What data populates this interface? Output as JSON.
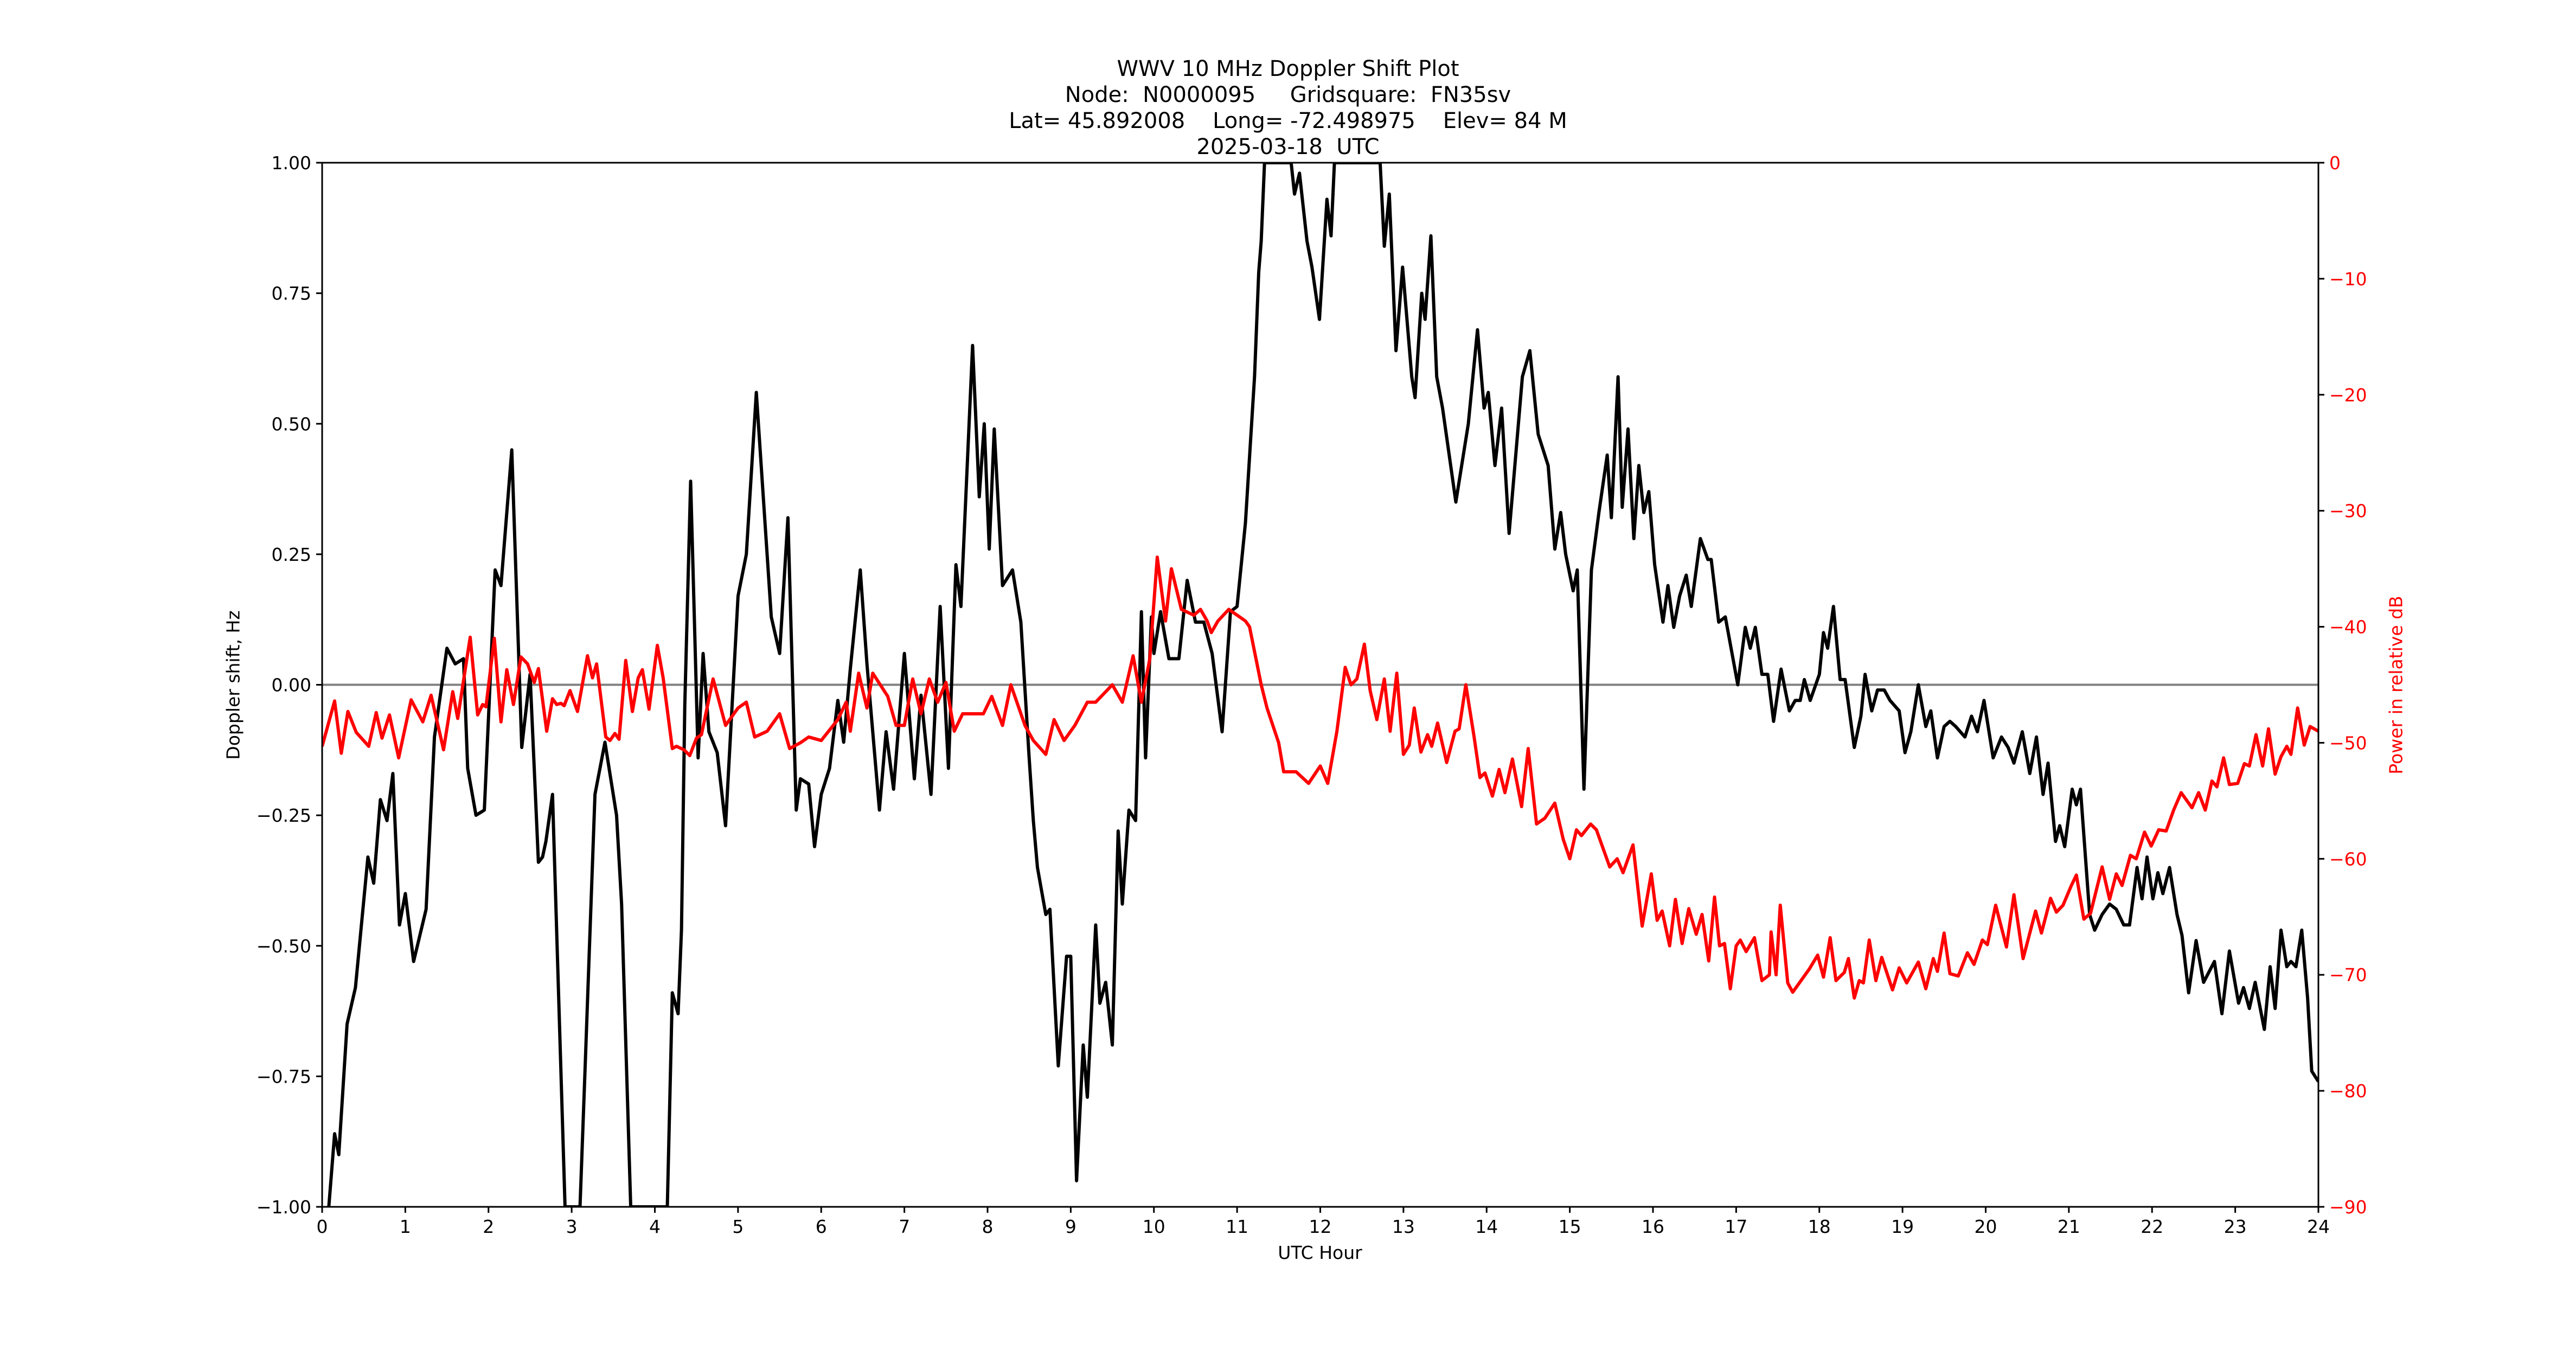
{
  "figure": {
    "title_lines": [
      "WWV 10 MHz Doppler Shift Plot",
      "Node:  N0000095     Gridsquare:  FN35sv",
      "Lat= 45.892008    Long= -72.498975    Elev= 84 M",
      "2025-03-18  UTC"
    ],
    "xlabel": "UTC Hour",
    "ylabel": "Doppler shift, Hz",
    "y2label": "Power in relative dB",
    "colors": {
      "doppler": "#000000",
      "power": "#ff0000",
      "zero_line": "#808080",
      "right_axis_text": "#ff0000"
    }
  },
  "chart_data": {
    "type": "line",
    "title": "WWV 10 MHz Doppler Shift Plot — Node: N0000095, Gridsquare: FN35sv, Lat= 45.892008, Long= -72.498975, Elev= 84 M, 2025-03-18 UTC",
    "xlabel": "UTC Hour",
    "ylabel": "Doppler shift, Hz",
    "y2label": "Power in relative dB",
    "xlim": [
      0,
      24
    ],
    "ylim": [
      -1.0,
      1.0
    ],
    "y2lim": [
      -90,
      0
    ],
    "xticks": [
      "0",
      "1",
      "2",
      "3",
      "4",
      "5",
      "6",
      "7",
      "8",
      "9",
      "10",
      "11",
      "12",
      "13",
      "14",
      "15",
      "16",
      "17",
      "18",
      "19",
      "20",
      "21",
      "22",
      "23",
      "24"
    ],
    "yticks": [
      "−1.00",
      "−0.75",
      "−0.50",
      "−0.25",
      "0.00",
      "0.25",
      "0.50",
      "0.75",
      "1.00"
    ],
    "y2ticks": [
      "−90",
      "−80",
      "−70",
      "−60",
      "−50",
      "−40",
      "−30",
      "−20",
      "−10",
      "0"
    ],
    "grid": false,
    "legend": null,
    "annotations": [
      "horizontal reference line at 0.00 Hz (gray)"
    ],
    "series": [
      {
        "name": "Doppler shift (Hz)",
        "axis": "left",
        "color": "#000000",
        "x": [
          0.08,
          0.15,
          0.2,
          0.3,
          0.4,
          0.55,
          0.62,
          0.7,
          0.78,
          0.85,
          0.93,
          1.0,
          1.1,
          1.25,
          1.35,
          1.5,
          1.6,
          1.7,
          1.75,
          1.85,
          1.95,
          2.08,
          2.15,
          2.28,
          2.4,
          2.5,
          2.6,
          2.65,
          2.69,
          2.77,
          2.92,
          3.1,
          3.16,
          3.21,
          3.28,
          3.4,
          3.48,
          3.54,
          3.6,
          3.71,
          4.15,
          4.21,
          4.28,
          4.32,
          4.36,
          4.43,
          4.52,
          4.58,
          4.65,
          4.75,
          4.85,
          5.0,
          5.1,
          5.22,
          5.4,
          5.5,
          5.6,
          5.7,
          5.75,
          5.85,
          5.92,
          6.0,
          6.1,
          6.2,
          6.27,
          6.35,
          6.47,
          6.55,
          6.7,
          6.78,
          6.87,
          7.0,
          7.12,
          7.2,
          7.32,
          7.43,
          7.53,
          7.62,
          7.68,
          7.82,
          7.9,
          7.96,
          8.02,
          8.08,
          8.18,
          8.3,
          8.4,
          8.5,
          8.55,
          8.6,
          8.7,
          8.75,
          8.85,
          8.95,
          9.0,
          9.07,
          9.15,
          9.2,
          9.3,
          9.35,
          9.42,
          9.5,
          9.57,
          9.62,
          9.7,
          9.78,
          9.85,
          9.9,
          9.97,
          10.0,
          10.08,
          10.18,
          10.3,
          10.4,
          10.5,
          10.6,
          10.7,
          10.82,
          10.92,
          11.0,
          11.1,
          11.21,
          11.26,
          11.29,
          11.33,
          11.65,
          11.69,
          11.75,
          11.84,
          11.9,
          11.99,
          12.08,
          12.13,
          12.17,
          12.72,
          12.77,
          12.83,
          12.91,
          12.99,
          13.1,
          13.14,
          13.22,
          13.26,
          13.33,
          13.4,
          13.47,
          13.63,
          13.78,
          13.89,
          13.97,
          14.02,
          14.1,
          14.18,
          14.27,
          14.43,
          14.52,
          14.62,
          14.74,
          14.82,
          14.89,
          14.95,
          15.04,
          15.09,
          15.17,
          15.26,
          15.35,
          15.45,
          15.5,
          15.58,
          15.63,
          15.7,
          15.77,
          15.83,
          15.89,
          15.95,
          16.02,
          16.12,
          16.18,
          16.25,
          16.32,
          16.4,
          16.46,
          16.57,
          16.66,
          16.7,
          16.79,
          16.87,
          17.02,
          17.11,
          17.17,
          17.23,
          17.31,
          17.38,
          17.45,
          17.54,
          17.64,
          17.71,
          17.77,
          17.82,
          17.89,
          18.0,
          18.05,
          18.1,
          18.17,
          18.25,
          18.31,
          18.42,
          18.5,
          18.55,
          18.63,
          18.7,
          18.78,
          18.85,
          18.96,
          19.03,
          19.1,
          19.19,
          19.28,
          19.34,
          19.42,
          19.5,
          19.57,
          19.64,
          19.75,
          19.83,
          19.9,
          19.98,
          20.09,
          20.19,
          20.27,
          20.34,
          20.44,
          20.53,
          20.61,
          20.69,
          20.75,
          20.84,
          20.89,
          20.95,
          21.04,
          21.09,
          21.14,
          21.25,
          21.31,
          21.4,
          21.49,
          21.57,
          21.66,
          21.73,
          21.82,
          21.88,
          21.94,
          22.01,
          22.07,
          22.13,
          22.21,
          22.3,
          22.36,
          22.44,
          22.53,
          22.62,
          22.75,
          22.84,
          22.93,
          23.04,
          23.1,
          23.17,
          23.24,
          23.35,
          23.42,
          23.48,
          23.55,
          23.62,
          23.67,
          23.73,
          23.8,
          23.87,
          23.92,
          24.0
        ],
        "values": [
          -1.0,
          -0.86,
          -0.9,
          -0.65,
          -0.58,
          -0.33,
          -0.38,
          -0.22,
          -0.26,
          -0.17,
          -0.46,
          -0.4,
          -0.53,
          -0.43,
          -0.1,
          0.07,
          0.04,
          0.05,
          -0.16,
          -0.25,
          -0.24,
          0.22,
          0.19,
          0.45,
          -0.12,
          0.02,
          -0.34,
          -0.33,
          -0.3,
          -0.21,
          -1.0,
          -1.0,
          -0.74,
          -0.52,
          -0.21,
          -0.11,
          -0.19,
          -0.25,
          -0.42,
          -1.0,
          -1.0,
          -0.59,
          -0.63,
          -0.47,
          -0.04,
          0.39,
          -0.14,
          0.06,
          -0.09,
          -0.13,
          -0.27,
          0.17,
          0.25,
          0.56,
          0.13,
          0.06,
          0.32,
          -0.24,
          -0.18,
          -0.19,
          -0.31,
          -0.21,
          -0.16,
          -0.03,
          -0.11,
          0.03,
          0.22,
          0.04,
          -0.24,
          -0.09,
          -0.2,
          0.06,
          -0.18,
          -0.02,
          -0.21,
          0.15,
          -0.16,
          0.23,
          0.15,
          0.65,
          0.36,
          0.5,
          0.26,
          0.49,
          0.19,
          0.22,
          0.12,
          -0.14,
          -0.26,
          -0.35,
          -0.44,
          -0.43,
          -0.73,
          -0.52,
          -0.52,
          -0.95,
          -0.69,
          -0.79,
          -0.46,
          -0.61,
          -0.57,
          -0.69,
          -0.28,
          -0.42,
          -0.24,
          -0.26,
          0.14,
          -0.14,
          0.13,
          0.06,
          0.14,
          0.05,
          0.05,
          0.2,
          0.12,
          0.12,
          0.06,
          -0.09,
          0.14,
          0.15,
          0.31,
          0.59,
          0.79,
          0.85,
          1.0,
          1.0,
          0.94,
          0.98,
          0.85,
          0.8,
          0.7,
          0.93,
          0.86,
          1.0,
          1.0,
          0.84,
          0.94,
          0.64,
          0.8,
          0.59,
          0.55,
          0.75,
          0.7,
          0.86,
          0.59,
          0.53,
          0.35,
          0.5,
          0.68,
          0.53,
          0.56,
          0.42,
          0.53,
          0.29,
          0.59,
          0.64,
          0.48,
          0.42,
          0.26,
          0.33,
          0.25,
          0.18,
          0.22,
          -0.2,
          0.22,
          0.33,
          0.44,
          0.32,
          0.59,
          0.34,
          0.49,
          0.28,
          0.42,
          0.33,
          0.37,
          0.23,
          0.12,
          0.19,
          0.11,
          0.17,
          0.21,
          0.15,
          0.28,
          0.24,
          0.24,
          0.12,
          0.13,
          0.0,
          0.11,
          0.07,
          0.11,
          0.02,
          0.02,
          -0.07,
          0.03,
          -0.05,
          -0.03,
          -0.03,
          0.01,
          -0.03,
          0.02,
          0.1,
          0.07,
          0.15,
          0.01,
          0.01,
          -0.12,
          -0.06,
          0.02,
          -0.05,
          -0.01,
          -0.01,
          -0.03,
          -0.05,
          -0.13,
          -0.09,
          0.0,
          -0.08,
          -0.05,
          -0.14,
          -0.08,
          -0.07,
          -0.08,
          -0.1,
          -0.06,
          -0.09,
          -0.03,
          -0.14,
          -0.1,
          -0.12,
          -0.15,
          -0.09,
          -0.17,
          -0.1,
          -0.21,
          -0.15,
          -0.3,
          -0.27,
          -0.31,
          -0.2,
          -0.23,
          -0.2,
          -0.44,
          -0.47,
          -0.44,
          -0.42,
          -0.43,
          -0.46,
          -0.46,
          -0.35,
          -0.41,
          -0.33,
          -0.41,
          -0.36,
          -0.4,
          -0.35,
          -0.44,
          -0.48,
          -0.59,
          -0.49,
          -0.57,
          -0.53,
          -0.63,
          -0.51,
          -0.61,
          -0.58,
          -0.62,
          -0.57,
          -0.66,
          -0.54,
          -0.62,
          -0.47,
          -0.54,
          -0.53,
          -0.54,
          -0.47,
          -0.6,
          -0.74,
          -0.76
        ]
      },
      {
        "name": "Power (relative dB)",
        "axis": "right",
        "color": "#ff0000",
        "x": [
          0.0,
          0.15,
          0.23,
          0.31,
          0.41,
          0.51,
          0.56,
          0.65,
          0.72,
          0.81,
          0.92,
          1.07,
          1.21,
          1.31,
          1.46,
          1.57,
          1.63,
          1.78,
          1.87,
          1.93,
          1.97,
          2.07,
          2.15,
          2.22,
          2.3,
          2.39,
          2.47,
          2.55,
          2.6,
          2.7,
          2.77,
          2.82,
          2.87,
          2.91,
          2.98,
          3.07,
          3.19,
          3.25,
          3.3,
          3.41,
          3.46,
          3.52,
          3.57,
          3.65,
          3.73,
          3.8,
          3.85,
          3.93,
          4.03,
          4.1,
          4.21,
          4.26,
          4.35,
          4.42,
          4.5,
          4.56,
          4.7,
          4.85,
          5.0,
          5.1,
          5.2,
          5.35,
          5.5,
          5.62,
          5.75,
          5.85,
          6.0,
          6.2,
          6.3,
          6.35,
          6.45,
          6.55,
          6.62,
          6.8,
          6.9,
          7.0,
          7.1,
          7.2,
          7.3,
          7.4,
          7.5,
          7.6,
          7.7,
          7.82,
          7.95,
          8.05,
          8.18,
          8.28,
          8.45,
          8.55,
          8.7,
          8.8,
          8.92,
          9.05,
          9.2,
          9.3,
          9.5,
          9.62,
          9.75,
          9.85,
          9.95,
          10.04,
          10.14,
          10.21,
          10.33,
          10.48,
          10.56,
          10.64,
          10.69,
          10.77,
          10.9,
          11.1,
          11.15,
          11.29,
          11.36,
          11.5,
          11.56,
          11.71,
          11.86,
          12.0,
          12.09,
          12.2,
          12.3,
          12.37,
          12.44,
          12.53,
          12.6,
          12.68,
          12.77,
          12.84,
          12.92,
          13.0,
          13.07,
          13.13,
          13.21,
          13.29,
          13.34,
          13.41,
          13.52,
          13.62,
          13.67,
          13.75,
          13.85,
          13.92,
          13.98,
          14.07,
          14.15,
          14.22,
          14.31,
          14.42,
          14.5,
          14.6,
          14.7,
          14.82,
          14.92,
          15.0,
          15.08,
          15.14,
          15.25,
          15.32,
          15.48,
          15.57,
          15.64,
          15.76,
          15.87,
          15.98,
          16.05,
          16.11,
          16.2,
          16.27,
          16.35,
          16.43,
          16.52,
          16.59,
          16.67,
          16.74,
          16.8,
          16.86,
          16.93,
          17.0,
          17.05,
          17.12,
          17.22,
          17.31,
          17.4,
          17.42,
          17.48,
          17.53,
          17.62,
          17.68,
          17.78,
          17.88,
          17.98,
          18.05,
          18.13,
          18.2,
          18.3,
          18.35,
          18.42,
          18.48,
          18.53,
          18.6,
          18.68,
          18.75,
          18.88,
          18.96,
          19.05,
          19.19,
          19.28,
          19.37,
          19.42,
          19.5,
          19.57,
          19.67,
          19.78,
          19.86,
          19.96,
          20.02,
          20.12,
          20.25,
          20.34,
          20.45,
          20.6,
          20.67,
          20.78,
          20.85,
          20.93,
          21.03,
          21.09,
          21.18,
          21.26,
          21.4,
          21.49,
          21.57,
          21.64,
          21.74,
          21.81,
          21.91,
          21.99,
          22.08,
          22.17,
          22.26,
          22.35,
          22.48,
          22.56,
          22.64,
          22.72,
          22.78,
          22.86,
          22.93,
          23.03,
          23.11,
          23.17,
          23.25,
          23.33,
          23.4,
          23.48,
          23.55,
          23.62,
          23.67,
          23.75,
          23.83,
          23.9,
          24.0
        ],
        "values": [
          -50.3,
          -46.4,
          -50.9,
          -47.3,
          -49.1,
          -49.9,
          -50.3,
          -47.4,
          -49.6,
          -47.6,
          -51.3,
          -46.3,
          -48.2,
          -45.9,
          -50.6,
          -45.6,
          -47.9,
          -40.9,
          -47.6,
          -46.7,
          -46.9,
          -41.0,
          -48.2,
          -43.7,
          -46.7,
          -42.6,
          -43.2,
          -44.8,
          -43.6,
          -49.0,
          -46.2,
          -46.7,
          -46.6,
          -46.8,
          -45.5,
          -47.3,
          -42.5,
          -44.4,
          -43.2,
          -49.5,
          -49.8,
          -49.2,
          -49.7,
          -42.9,
          -47.3,
          -44.4,
          -43.7,
          -47.1,
          -41.6,
          -44.4,
          -50.5,
          -50.3,
          -50.6,
          -51.1,
          -49.6,
          -49.3,
          -44.5,
          -48.5,
          -47.0,
          -46.5,
          -49.5,
          -49.0,
          -47.5,
          -50.5,
          -50.0,
          -49.5,
          -49.8,
          -48.0,
          -46.5,
          -49.0,
          -44.0,
          -47.0,
          -44.0,
          -46.0,
          -48.5,
          -48.5,
          -44.5,
          -47.5,
          -44.5,
          -46.5,
          -44.8,
          -49.0,
          -47.5,
          -47.5,
          -47.5,
          -46.0,
          -48.5,
          -45.0,
          -48.5,
          -49.8,
          -51.0,
          -48.0,
          -49.8,
          -48.5,
          -46.5,
          -46.5,
          -45.0,
          -46.5,
          -42.5,
          -46.5,
          -42.8,
          -34.0,
          -39.5,
          -35.0,
          -38.5,
          -39.0,
          -38.5,
          -39.5,
          -40.5,
          -39.5,
          -38.5,
          -39.5,
          -40.0,
          -45.0,
          -47.0,
          -50.0,
          -52.5,
          -52.5,
          -53.5,
          -52.0,
          -53.5,
          -49.0,
          -43.5,
          -45.0,
          -44.5,
          -41.5,
          -45.5,
          -48.0,
          -44.5,
          -49.0,
          -44.0,
          -51.0,
          -50.2,
          -47.0,
          -50.8,
          -49.3,
          -50.3,
          -48.3,
          -51.7,
          -49.0,
          -48.8,
          -45.0,
          -49.5,
          -53.0,
          -52.6,
          -54.6,
          -52.3,
          -54.3,
          -51.4,
          -55.5,
          -50.5,
          -57.0,
          -56.5,
          -55.2,
          -58.3,
          -60.0,
          -57.5,
          -58.0,
          -57.0,
          -57.5,
          -60.7,
          -60.0,
          -61.2,
          -58.8,
          -65.8,
          -61.3,
          -65.3,
          -64.5,
          -67.5,
          -63.5,
          -67.3,
          -64.3,
          -66.5,
          -64.8,
          -68.8,
          -63.3,
          -67.5,
          -67.3,
          -71.2,
          -67.5,
          -67.0,
          -68.0,
          -66.8,
          -70.5,
          -70.0,
          -66.3,
          -70.0,
          -64.0,
          -70.7,
          -71.5,
          -70.5,
          -69.5,
          -68.3,
          -70.2,
          -66.8,
          -70.5,
          -69.8,
          -68.6,
          -72.0,
          -70.5,
          -70.7,
          -67.0,
          -70.5,
          -68.5,
          -71.3,
          -69.4,
          -70.7,
          -68.9,
          -71.2,
          -68.6,
          -69.7,
          -66.4,
          -69.9,
          -70.1,
          -68.1,
          -69.1,
          -67.0,
          -67.4,
          -64.0,
          -67.6,
          -63.1,
          -68.6,
          -64.5,
          -66.4,
          -63.4,
          -64.6,
          -64.0,
          -62.3,
          -61.4,
          -65.2,
          -64.7,
          -60.7,
          -63.5,
          -61.3,
          -62.3,
          -59.7,
          -60.0,
          -57.7,
          -58.9,
          -57.5,
          -57.6,
          -55.8,
          -54.3,
          -55.6,
          -54.3,
          -55.8,
          -53.3,
          -53.8,
          -51.3,
          -53.6,
          -53.5,
          -51.8,
          -52.0,
          -49.3,
          -52.0,
          -48.8,
          -52.7,
          -51.2,
          -50.3,
          -51.0,
          -47.0,
          -50.2,
          -48.6,
          -49.0
        ]
      }
    ]
  }
}
